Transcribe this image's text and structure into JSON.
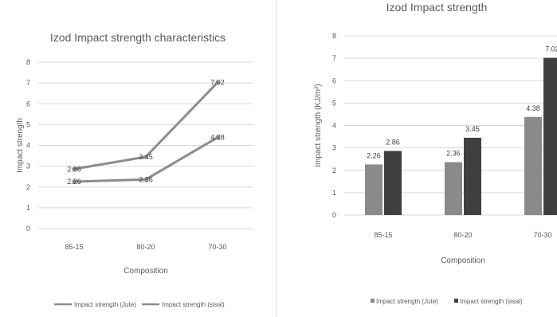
{
  "chart_data": [
    {
      "type": "line",
      "title": "Izod Impact strength characteristics",
      "xlabel": "Composition",
      "ylabel": "Impact strength",
      "categories": [
        "85-15",
        "80-20",
        "70-30"
      ],
      "ylim": [
        0,
        8
      ],
      "yticks": [
        "0",
        "1",
        "2",
        "3",
        "4",
        "5",
        "6",
        "7",
        "8"
      ],
      "grid": true,
      "legend": "bottom",
      "series": [
        {
          "name": "Impact strength (Jute)",
          "values": [
            2.26,
            2.36,
            4.38
          ],
          "labels": [
            "2.26",
            "2.36",
            "4.38"
          ],
          "color": "#8c8c8c"
        },
        {
          "name": "Impact strength (sisal)",
          "values": [
            2.86,
            3.45,
            7.02
          ],
          "labels": [
            "2.86",
            "3.45",
            "7.02"
          ],
          "color": "#8c8c8c"
        }
      ]
    },
    {
      "type": "bar",
      "title": "Izod Impact strength",
      "xlabel": "Composition",
      "ylabel": "Impact strength (KJ/m²)",
      "categories": [
        "85-15",
        "80-20",
        "70-30"
      ],
      "ylim": [
        0,
        8
      ],
      "yticks": [
        "0",
        "1",
        "2",
        "3",
        "4",
        "5",
        "6",
        "7",
        "8"
      ],
      "grid": true,
      "legend": "bottom",
      "series": [
        {
          "name": "Impact strength (Jute)",
          "values": [
            2.26,
            2.36,
            4.38
          ],
          "labels": [
            "2.26",
            "2.36",
            "4.38"
          ],
          "color": "#8a8a8a"
        },
        {
          "name": "Impact strength (sisal)",
          "values": [
            2.86,
            3.45,
            7.02
          ],
          "labels": [
            "2.86",
            "3.45",
            "7.02"
          ],
          "color": "#404040"
        }
      ]
    }
  ]
}
